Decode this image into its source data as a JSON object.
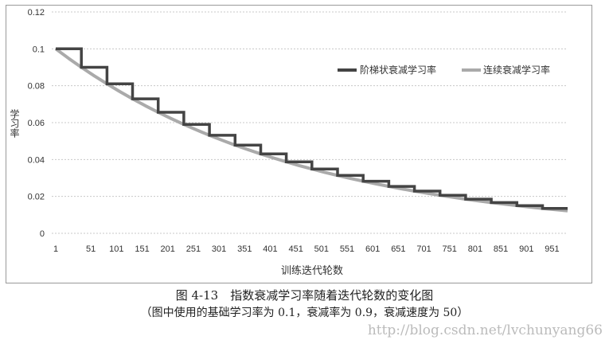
{
  "chart_data": {
    "type": "line",
    "title": "",
    "xlabel": "训练迭代轮数",
    "ylabel": "学习率",
    "xlim": [
      1,
      1000
    ],
    "ylim": [
      0,
      0.12
    ],
    "grid": true,
    "legend_position": "top-right",
    "x_tick_labels": [
      "1",
      "51",
      "101",
      "151",
      "201",
      "251",
      "301",
      "351",
      "401",
      "451",
      "501",
      "551",
      "601",
      "651",
      "701",
      "751",
      "801",
      "851",
      "901",
      "951"
    ],
    "y_tick_labels": [
      "0",
      "0.02",
      "0.04",
      "0.06",
      "0.08",
      "0.1",
      "0.12"
    ],
    "series": [
      {
        "name": "阶梯状衰减学习率",
        "color": "#444444",
        "interpolation": "step",
        "step_every": 50,
        "values": [
          0.1,
          0.09,
          0.081,
          0.0729,
          0.06561,
          0.059049,
          0.053144,
          0.04783,
          0.043047,
          0.038742,
          0.034868,
          0.031381,
          0.028243,
          0.025419,
          0.022877,
          0.020589,
          0.01853,
          0.016677,
          0.015009,
          0.013509
        ]
      },
      {
        "name": "连续衰减学习率",
        "color": "#aaaaaa",
        "interpolation": "linear",
        "x": [
          1,
          26,
          51,
          76,
          101,
          126,
          151,
          176,
          201,
          226,
          251,
          276,
          301,
          326,
          351,
          376,
          401,
          426,
          451,
          476,
          501,
          526,
          551,
          576,
          601,
          626,
          651,
          676,
          701,
          726,
          751,
          776,
          801,
          826,
          851,
          876,
          901,
          926,
          951,
          976,
          1000
        ],
        "values": [
          0.1,
          0.094868,
          0.09,
          0.085381,
          0.081,
          0.076843,
          0.0729,
          0.069159,
          0.06561,
          0.062243,
          0.059049,
          0.056019,
          0.053144,
          0.050417,
          0.04783,
          0.045375,
          0.043047,
          0.040838,
          0.038742,
          0.036754,
          0.034868,
          0.033079,
          0.031381,
          0.029771,
          0.028243,
          0.026794,
          0.025419,
          0.024114,
          0.022877,
          0.021703,
          0.020589,
          0.019533,
          0.01853,
          0.017579,
          0.016677,
          0.015821,
          0.015009,
          0.014239,
          0.013509,
          0.012815,
          0.012158
        ]
      }
    ]
  },
  "caption": {
    "title": "图 4-13　指数衰减学习率随着迭代轮数的变化图",
    "note": "（图中使用的基础学习率为 0.1，衰减率为 0.9，衰减速度为 50）"
  },
  "watermark": "http://blog.csdn.net/lvchunyang66"
}
